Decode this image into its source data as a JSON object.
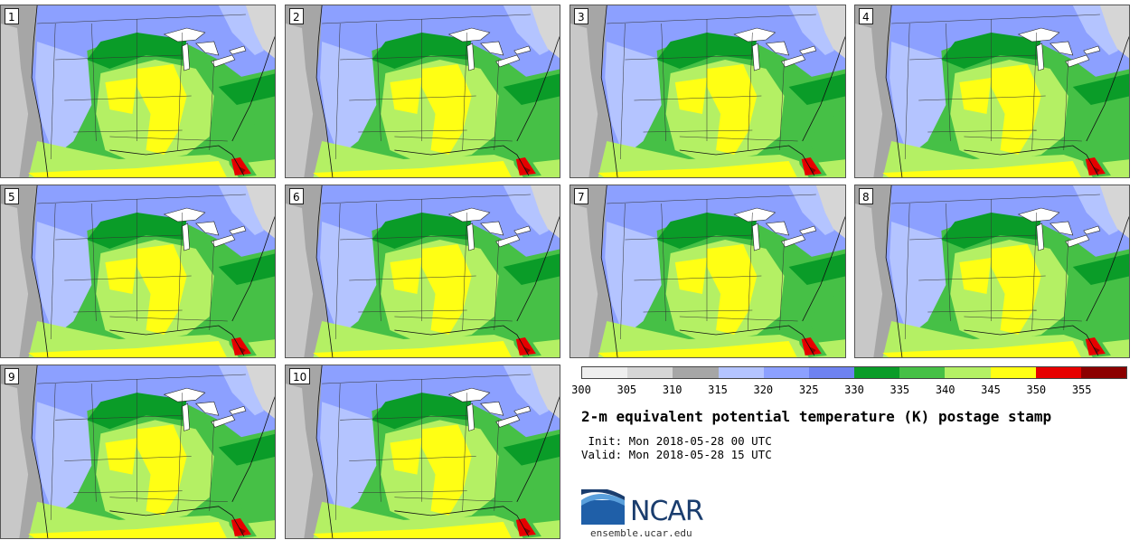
{
  "title": "2-m equivalent potential temperature (K) postage stamp",
  "init": " Init: Mon 2018-05-28 00 UTC",
  "valid": "Valid: Mon 2018-05-28 15 UTC",
  "site": "ensemble.ucar.edu",
  "logo_text": "NCAR",
  "members": [
    "1",
    "2",
    "3",
    "4",
    "5",
    "6",
    "7",
    "8",
    "9",
    "10"
  ],
  "colorbar": {
    "colors": [
      "#eeeeee",
      "#d6d6d6",
      "#a6a6a6",
      "#b4c4ff",
      "#8ca0ff",
      "#6e82f0",
      "#0a9c28",
      "#46c046",
      "#b4f064",
      "#ffff14",
      "#e60000",
      "#8c0000"
    ],
    "ticks": [
      "300",
      "305",
      "310",
      "315",
      "320",
      "325",
      "330",
      "335",
      "340",
      "345",
      "350",
      "355"
    ]
  }
}
